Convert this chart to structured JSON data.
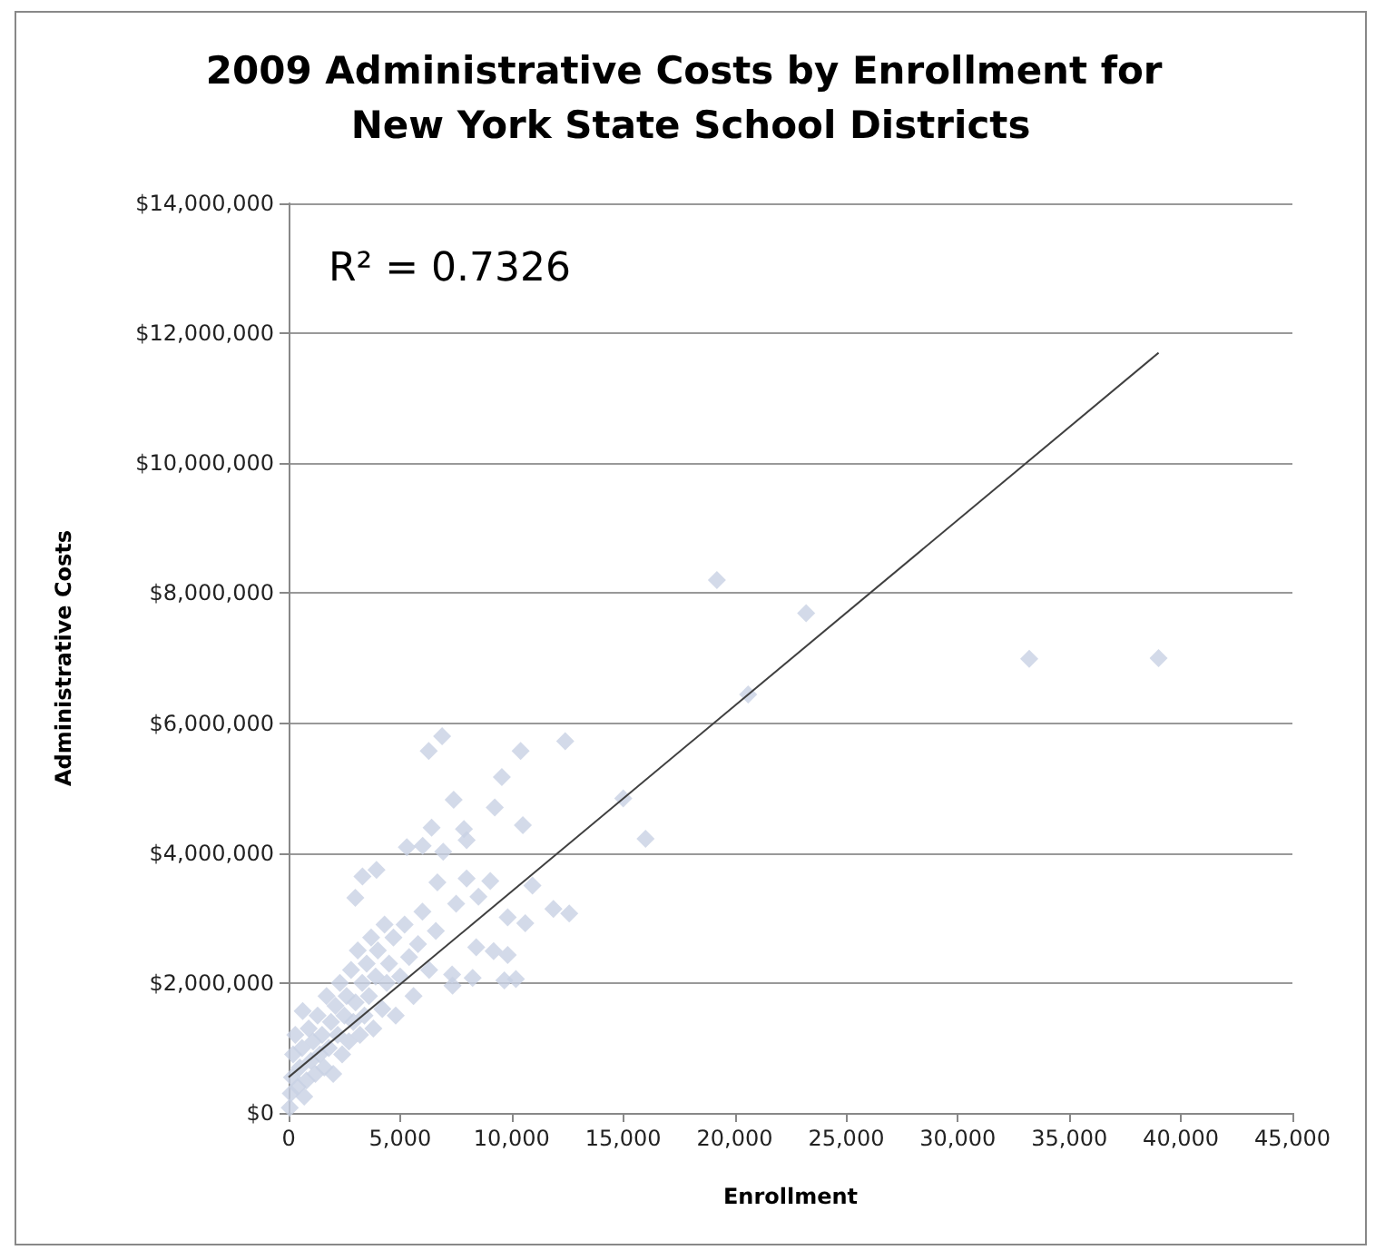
{
  "chart_data": {
    "type": "scatter",
    "title": "2009 Administrative Costs by Enrollment for New York State School Districts",
    "xlabel": "Enrollment",
    "ylabel": "Administrative Costs",
    "annotations": [
      "R² = 0.7326"
    ],
    "xlim": [
      0,
      45000
    ],
    "xticks": [
      0,
      {
        "value": 5000,
        "label": "5,000"
      },
      {
        "value": 10000,
        "label": "10,000"
      },
      {
        "value": 15000,
        "label": "15,000"
      },
      {
        "value": 20000,
        "label": "20,000"
      },
      {
        "value": 25000,
        "label": "25,000"
      },
      {
        "value": 30000,
        "label": "30,000"
      },
      {
        "value": 35000,
        "label": "35,000"
      },
      {
        "value": 40000,
        "label": "40,000"
      },
      {
        "value": 45000,
        "label": "45,000"
      }
    ],
    "ylim": [
      0,
      14000000
    ],
    "yticks": [
      {
        "value": 0,
        "label": "$0"
      },
      {
        "value": 2000000,
        "label": "$2,000,000"
      },
      {
        "value": 4000000,
        "label": "$4,000,000"
      },
      {
        "value": 6000000,
        "label": "$6,000,000"
      },
      {
        "value": 8000000,
        "label": "$8,000,000"
      },
      {
        "value": 10000000,
        "label": "$10,000,000"
      },
      {
        "value": 12000000,
        "label": "$12,000,000"
      },
      {
        "value": 14000000,
        "label": "$14,000,000"
      }
    ],
    "grid": "y",
    "marker": "diamond",
    "series": [
      {
        "type": "scatter",
        "color": "#c8d1e4",
        "x": [
          50,
          100,
          150,
          200,
          300,
          400,
          500,
          600,
          700,
          800,
          900,
          1000,
          1100,
          1200,
          1300,
          1400,
          1500,
          1600,
          1700,
          1800,
          1900,
          2000,
          2100,
          2200,
          2300,
          2400,
          2500,
          2600,
          2700,
          2800,
          2900,
          3000,
          3100,
          3200,
          3300,
          3400,
          3500,
          3600,
          3700,
          3800,
          3900,
          4000,
          4200,
          4300,
          4400,
          4500,
          4700,
          4800,
          5000,
          5200,
          5400,
          5600,
          5800,
          6000,
          6300,
          6600,
          630,
          2990,
          3310,
          3940,
          5300,
          6010,
          6280,
          6410,
          6670,
          6880,
          6930,
          7330,
          7350,
          7400,
          7510,
          7860,
          7980,
          7980,
          8250,
          8410,
          8510,
          9040,
          9190,
          9240,
          9560,
          9670,
          9820,
          9820,
          10190,
          10400,
          10500,
          10610,
          10930,
          11870,
          12400,
          12580,
          15000,
          16000,
          19200,
          20600,
          23200,
          33200,
          39000
        ],
        "values": [
          80000,
          300000,
          550000,
          900000,
          1200000,
          400000,
          700000,
          1000000,
          250000,
          500000,
          1300000,
          800000,
          1100000,
          600000,
          1500000,
          900000,
          1200000,
          700000,
          1800000,
          1000000,
          1400000,
          600000,
          1650000,
          1200000,
          2000000,
          900000,
          1500000,
          1800000,
          1100000,
          2200000,
          1400000,
          1700000,
          2500000,
          1200000,
          2000000,
          1500000,
          2300000,
          1800000,
          2700000,
          1300000,
          2100000,
          2500000,
          1600000,
          2900000,
          2000000,
          2300000,
          2700000,
          1500000,
          2100000,
          2900000,
          2400000,
          1800000,
          2600000,
          3100000,
          2200000,
          2800000,
          1570000,
          3310000,
          3640000,
          3740000,
          4090000,
          4110000,
          5570000,
          4390000,
          3550000,
          5800000,
          4020000,
          2130000,
          1960000,
          4820000,
          3220000,
          4370000,
          4200000,
          3610000,
          2080000,
          2550000,
          3330000,
          3570000,
          2490000,
          4700000,
          5170000,
          2040000,
          3010000,
          2430000,
          2060000,
          5570000,
          4430000,
          2920000,
          3500000,
          3140000,
          5720000,
          3070000,
          4840000,
          4220000,
          8200000,
          6440000,
          7690000,
          6990000,
          7000000
        ]
      },
      {
        "type": "line",
        "color": "#404040",
        "marker": "none",
        "x": [
          0,
          39000
        ],
        "values": [
          550000,
          11700000
        ]
      }
    ]
  }
}
